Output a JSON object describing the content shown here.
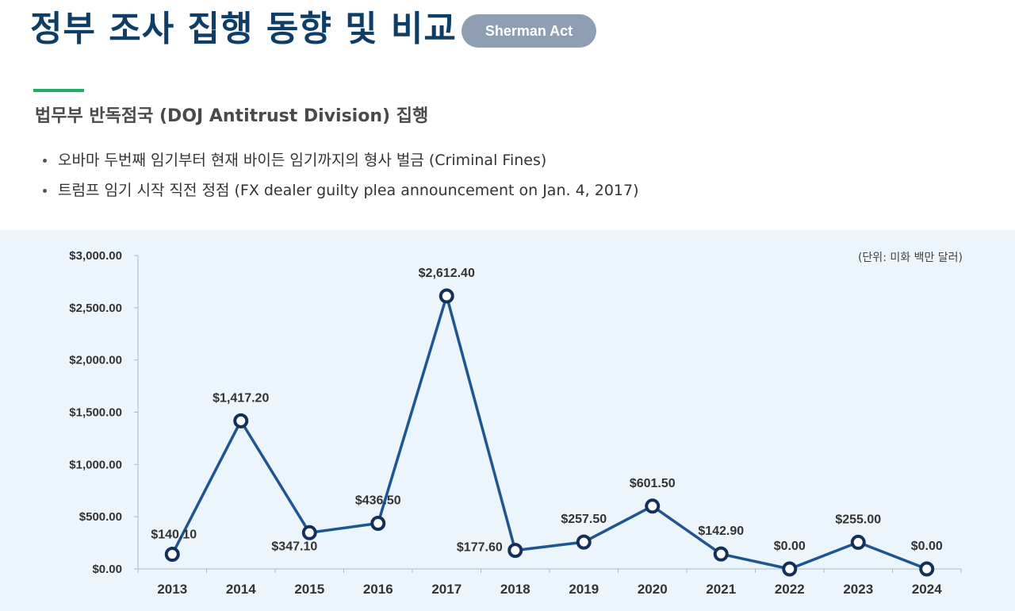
{
  "header": {
    "title": "정부 조사 집행 동향 및 비교",
    "badge": "Sherman Act"
  },
  "section": {
    "subtitle": "법무부 반독점국 (DOJ Antitrust Division) 집행",
    "bullets": [
      "오바마 두번째 임기부터 현재 바이든 임기까지의 형사 벌금 (Criminal Fines)",
      "트럼프 임기 시작 직전 정점 (FX dealer guilty plea announcement on Jan. 4, 2017)"
    ]
  },
  "chart_data": {
    "type": "line",
    "title": "",
    "xlabel": "",
    "ylabel": "",
    "unit_note": "(단위: 미화 백만 달러)",
    "categories": [
      "2013",
      "2014",
      "2015",
      "2016",
      "2017",
      "2018",
      "2019",
      "2020",
      "2021",
      "2022",
      "2023",
      "2024"
    ],
    "series": [
      {
        "values": [
          140.1,
          1417.2,
          347.1,
          436.5,
          2612.4,
          177.6,
          257.5,
          601.5,
          142.9,
          0.0,
          255.0,
          0.0
        ],
        "data_labels": [
          "$140.10",
          "$1,417.20",
          "$347.10",
          "$436.50",
          "$2,612.40",
          "$177.60",
          "$257.50",
          "$601.50",
          "$142.90",
          "$0.00",
          "$255.00",
          "$0.00"
        ]
      }
    ],
    "ylim": [
      0,
      3000
    ],
    "yticks": [
      0,
      500,
      1000,
      1500,
      2000,
      2500,
      3000
    ],
    "ytick_labels": [
      "$0.00",
      "$500.00",
      "$1,000.00",
      "$1,500.00",
      "$2,000.00",
      "$2,500.00",
      "$3,000.00"
    ],
    "grid": false,
    "legend": "none",
    "colors": {
      "line": "#1f5591",
      "marker_fill": "#ffffff",
      "marker_stroke": "#12305a",
      "background": "#ebf5fb"
    }
  }
}
